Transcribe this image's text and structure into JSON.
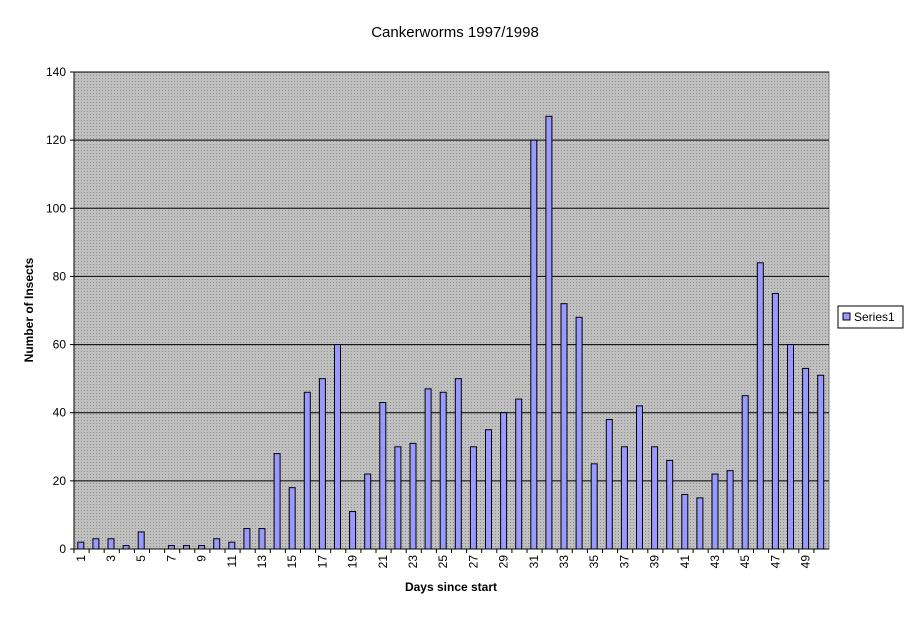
{
  "chart_data": {
    "type": "bar",
    "title": "Cankerworms 1997/1998",
    "x_label": "Days since start",
    "y_label": "Number of Insects",
    "categories": [
      "1",
      null,
      "3",
      null,
      "5",
      null,
      "7",
      null,
      "9",
      null,
      "11",
      null,
      "13",
      null,
      "15",
      null,
      "17",
      null,
      "19",
      null,
      "21",
      null,
      "23",
      null,
      "25",
      null,
      "27",
      null,
      "29",
      null,
      "31",
      null,
      "33",
      null,
      "35",
      null,
      "37",
      null,
      "39",
      null,
      "41",
      null,
      "43",
      null,
      "45",
      null,
      "47",
      null,
      "49",
      null
    ],
    "series": [
      {
        "name": "Series1",
        "color": "#9999ff",
        "values": [
          2,
          3,
          3,
          1,
          5,
          0,
          1,
          1,
          1,
          3,
          2,
          6,
          6,
          28,
          18,
          46,
          50,
          60,
          11,
          22,
          43,
          30,
          31,
          47,
          46,
          50,
          30,
          35,
          40,
          44,
          120,
          127,
          72,
          68,
          25,
          38,
          30,
          42,
          30,
          26,
          16,
          15,
          22,
          23,
          45,
          84,
          75,
          60,
          53,
          51
        ]
      }
    ],
    "ylim": [
      0,
      140
    ],
    "yticks": [
      0,
      20,
      40,
      60,
      80,
      100,
      120,
      140
    ],
    "grid": true,
    "legend": "right"
  }
}
